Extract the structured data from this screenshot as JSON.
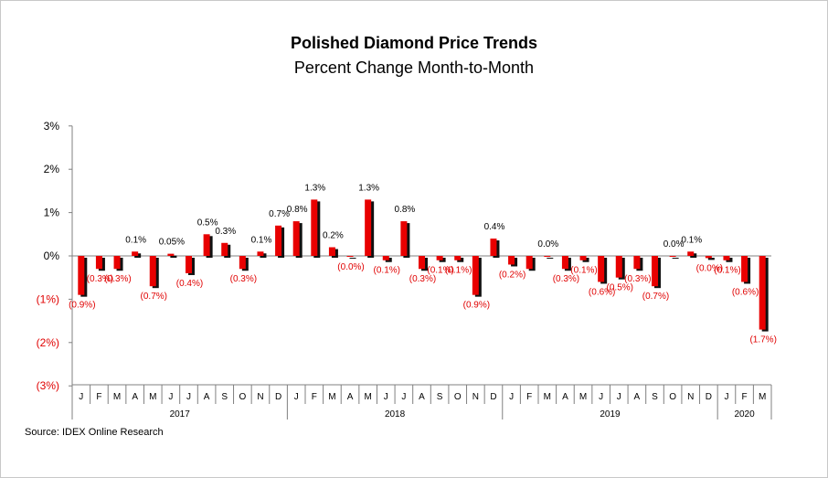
{
  "chart_data": {
    "type": "bar",
    "title": "Polished Diamond Price Trends",
    "subtitle": "Percent Change Month-to-Month",
    "source": "Source:  IDEX Online Research",
    "ylim": [
      -3,
      3
    ],
    "yticks": [
      {
        "value": 3,
        "label": "3%"
      },
      {
        "value": 2,
        "label": "2%"
      },
      {
        "value": 1,
        "label": "1%"
      },
      {
        "value": 0,
        "label": "0%"
      },
      {
        "value": -1,
        "label": "(1%)"
      },
      {
        "value": -2,
        "label": "(2%)"
      },
      {
        "value": -3,
        "label": "(3%)"
      }
    ],
    "categories": [
      "J",
      "F",
      "M",
      "A",
      "M",
      "J",
      "J",
      "A",
      "S",
      "O",
      "N",
      "D",
      "J",
      "F",
      "M",
      "A",
      "M",
      "J",
      "J",
      "A",
      "S",
      "O",
      "N",
      "D",
      "J",
      "F",
      "M",
      "A",
      "M",
      "J",
      "J",
      "A",
      "S",
      "O",
      "N",
      "D",
      "J",
      "F",
      "M"
    ],
    "values": [
      -0.9,
      -0.3,
      -0.3,
      0.1,
      -0.7,
      0.05,
      -0.4,
      0.5,
      0.3,
      -0.3,
      0.1,
      0.7,
      0.8,
      1.3,
      0.2,
      -0.02,
      1.3,
      -0.1,
      0.8,
      -0.3,
      -0.1,
      -0.1,
      -0.9,
      0.4,
      -0.2,
      -0.3,
      0.0,
      -0.3,
      -0.1,
      -0.6,
      -0.5,
      -0.3,
      -0.7,
      0.0,
      0.1,
      -0.05,
      -0.1,
      -0.6,
      -1.7
    ],
    "data_labels": [
      "(0.9%)",
      "(0.3%)",
      "(0.3%)",
      "0.1%",
      "(0.7%)",
      "0.05%",
      "(0.4%)",
      "0.5%",
      "0.3%",
      "(0.3%)",
      "0.1%",
      "0.7%",
      "0.8%",
      "1.3%",
      "0.2%",
      "(0.0%)",
      "1.3%",
      "(0.1%)",
      "0.8%",
      "(0.3%)",
      "(0.1%)",
      "(0.1%)",
      "(0.9%)",
      "0.4%",
      "(0.2%)",
      "",
      "0.0%",
      "(0.3%)",
      "(0.1%)",
      "(0.6%)",
      "(0.5%)",
      "(0.3%)",
      "(0.7%)",
      "0.0%",
      "0.1%",
      "(0.0%)",
      "(0.1%)",
      "(0.6%)",
      "(1.7%)"
    ],
    "years": [
      {
        "label": "2017",
        "start": 0,
        "end": 11
      },
      {
        "label": "2018",
        "start": 12,
        "end": 23
      },
      {
        "label": "2019",
        "start": 24,
        "end": 35
      },
      {
        "label": "2020",
        "start": 36,
        "end": 38
      }
    ],
    "colors": {
      "bar": "#e80000",
      "shadow": "#111111",
      "negative_text": "#e00000",
      "positive_text": "#000000",
      "axis": "#808080"
    }
  }
}
